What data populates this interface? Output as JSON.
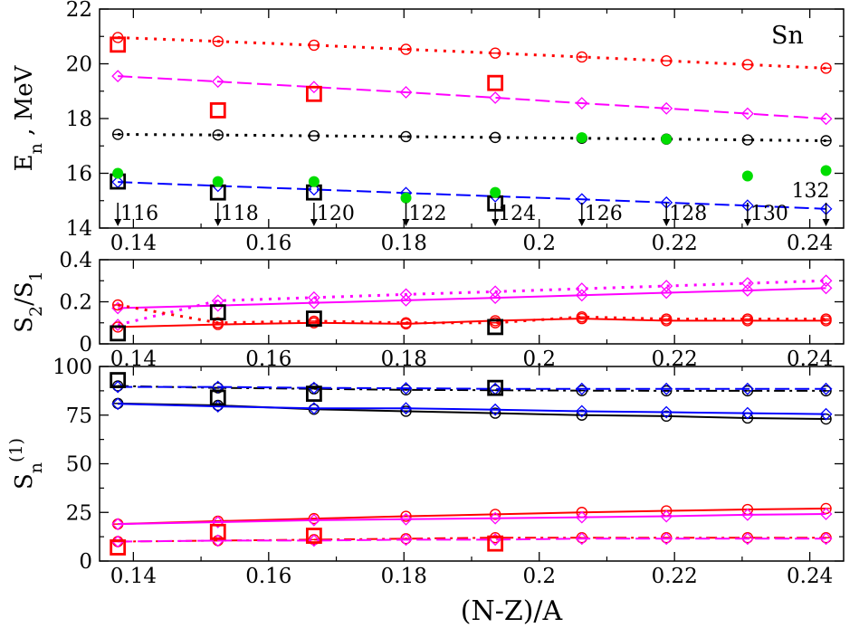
{
  "figure_label": "Sn",
  "shared_x": {
    "label": "(N-Z)/A",
    "ticks": [
      "0.14",
      "0.16",
      "0.18",
      "0.2",
      "0.22",
      "0.24"
    ],
    "tick_values": [
      0.14,
      0.16,
      0.18,
      0.2,
      0.22,
      0.24
    ],
    "range": [
      0.135,
      0.245
    ]
  },
  "colors": {
    "red": "#ff0000",
    "magenta": "#ff00ff",
    "black": "#000000",
    "blue": "#0000ff",
    "green": "#00dd00"
  },
  "chart_data": [
    {
      "type": "line",
      "panel": "top",
      "ylabel": "E_n , MeV",
      "ylim": [
        14,
        22
      ],
      "yticks": [
        "14",
        "16",
        "18",
        "20",
        "22"
      ],
      "ytick_values": [
        14,
        16,
        18,
        20,
        22
      ],
      "x": [
        0.1377,
        0.1525,
        0.1667,
        0.1803,
        0.1935,
        0.2063,
        0.2188,
        0.2308,
        0.2424
      ],
      "series": [
        {
          "name": "red calc",
          "color": "red",
          "marker": "circle",
          "dash": "dots",
          "values": [
            20.96,
            20.82,
            20.68,
            20.53,
            20.39,
            20.25,
            20.11,
            19.97,
            19.84
          ]
        },
        {
          "name": "magenta calc",
          "color": "magenta",
          "marker": "diamond",
          "dash": "long",
          "values": [
            19.55,
            19.35,
            19.15,
            18.96,
            18.76,
            18.56,
            18.37,
            18.18,
            17.99
          ]
        },
        {
          "name": "black calc",
          "color": "black",
          "marker": "circle",
          "dash": "dots",
          "values": [
            17.42,
            17.4,
            17.37,
            17.34,
            17.31,
            17.28,
            17.25,
            17.22,
            17.19
          ]
        },
        {
          "name": "blue calc",
          "color": "blue",
          "marker": "diamond",
          "dash": "long",
          "values": [
            15.68,
            15.54,
            15.41,
            15.28,
            15.16,
            15.05,
            14.93,
            14.82,
            14.7
          ]
        }
      ],
      "experiment": [
        {
          "name": "red squares",
          "color": "red",
          "marker": "square",
          "x": [
            0.1377,
            0.1525,
            0.1667,
            0.1935
          ],
          "values": [
            20.7,
            18.3,
            18.9,
            19.3
          ]
        },
        {
          "name": "black squares",
          "color": "black",
          "marker": "square",
          "x": [
            0.1377,
            0.1525,
            0.1667,
            0.1935
          ],
          "values": [
            15.7,
            15.3,
            15.3,
            14.9
          ]
        },
        {
          "name": "green dots",
          "color": "green",
          "marker": "filled-circle",
          "x": [
            0.1377,
            0.1525,
            0.1667,
            0.1803,
            0.1935,
            0.2063,
            0.2188,
            0.2308,
            0.2424
          ],
          "values": [
            16.0,
            15.7,
            15.7,
            15.1,
            15.3,
            17.3,
            17.25,
            15.9,
            16.1
          ]
        }
      ],
      "annotations": [
        {
          "text": "116",
          "x": 0.1377
        },
        {
          "text": "118",
          "x": 0.1525
        },
        {
          "text": "120",
          "x": 0.1667
        },
        {
          "text": "122",
          "x": 0.1803
        },
        {
          "text": "124",
          "x": 0.1935
        },
        {
          "text": "126",
          "x": 0.2063
        },
        {
          "text": "128",
          "x": 0.2188
        },
        {
          "text": "130",
          "x": 0.2308
        },
        {
          "text": "132",
          "x": 0.2424
        }
      ]
    },
    {
      "type": "line",
      "panel": "middle",
      "ylabel": "S_2/S_1",
      "ylim": [
        0,
        0.4
      ],
      "yticks": [
        "0",
        "0.2",
        "0.4"
      ],
      "ytick_values": [
        0,
        0.2,
        0.4
      ],
      "x": [
        0.1377,
        0.1525,
        0.1667,
        0.1803,
        0.1935,
        0.2063,
        0.2188,
        0.2308,
        0.2424
      ],
      "series": [
        {
          "name": "magenta solid",
          "color": "magenta",
          "marker": "diamond",
          "dash": "solid",
          "values": [
            0.17,
            0.182,
            0.195,
            0.207,
            0.219,
            0.231,
            0.243,
            0.254,
            0.265
          ]
        },
        {
          "name": "magenta dotted",
          "color": "magenta",
          "marker": "diamond",
          "dash": "dots",
          "values": [
            0.09,
            0.205,
            0.22,
            0.235,
            0.248,
            0.262,
            0.275,
            0.288,
            0.3
          ]
        },
        {
          "name": "red solid",
          "color": "red",
          "marker": "circle",
          "dash": "solid",
          "values": [
            0.08,
            0.092,
            0.1,
            0.095,
            0.11,
            0.12,
            0.11,
            0.11,
            0.11
          ]
        },
        {
          "name": "red dotted",
          "color": "red",
          "marker": "circle",
          "dash": "dots",
          "values": [
            0.185,
            0.1,
            0.108,
            0.1,
            0.1,
            0.128,
            0.118,
            0.118,
            0.118
          ]
        }
      ],
      "experiment": [
        {
          "name": "black squares",
          "color": "black",
          "marker": "square",
          "x": [
            0.1377,
            0.1525,
            0.1667,
            0.1935
          ],
          "values": [
            0.05,
            0.15,
            0.12,
            0.08
          ]
        }
      ]
    },
    {
      "type": "line",
      "panel": "bottom",
      "ylabel": "S_n^(1)",
      "ylim": [
        0,
        100
      ],
      "yticks": [
        "0",
        "25",
        "50",
        "75",
        "100"
      ],
      "ytick_values": [
        0,
        25,
        50,
        75,
        100
      ],
      "x": [
        0.1377,
        0.1525,
        0.1667,
        0.1803,
        0.1935,
        0.2063,
        0.2188,
        0.2308,
        0.2424
      ],
      "series": [
        {
          "name": "black dashed",
          "color": "black",
          "marker": "circle",
          "dash": "dashdot",
          "values": [
            90.0,
            89.0,
            88.5,
            88.0,
            87.8,
            87.6,
            87.5,
            87.5,
            87.5
          ]
        },
        {
          "name": "blue dashed",
          "color": "blue",
          "marker": "diamond",
          "dash": "long",
          "values": [
            89.5,
            89.5,
            89.0,
            88.8,
            88.5,
            88.5,
            88.5,
            88.5,
            88.5
          ]
        },
        {
          "name": "black solid",
          "color": "black",
          "marker": "circle",
          "dash": "solid",
          "values": [
            81.0,
            80.0,
            78.0,
            77.0,
            76.0,
            75.0,
            74.5,
            73.5,
            73.0
          ]
        },
        {
          "name": "blue solid",
          "color": "blue",
          "marker": "diamond",
          "dash": "solid",
          "values": [
            80.8,
            79.5,
            78.5,
            78.5,
            77.8,
            77.0,
            76.5,
            76.0,
            75.5
          ]
        },
        {
          "name": "red solid",
          "color": "red",
          "marker": "circle",
          "dash": "solid",
          "values": [
            19.0,
            20.5,
            21.8,
            23.0,
            24.0,
            25.0,
            25.8,
            26.5,
            27.0
          ]
        },
        {
          "name": "magenta solid",
          "color": "magenta",
          "marker": "diamond",
          "dash": "solid",
          "values": [
            19.0,
            20.0,
            21.0,
            21.5,
            22.0,
            22.5,
            23.0,
            23.8,
            24.2
          ]
        },
        {
          "name": "red dashed",
          "color": "red",
          "marker": "circle",
          "dash": "dashdot",
          "values": [
            10.0,
            10.5,
            11.0,
            11.5,
            12.0,
            12.0,
            12.0,
            12.0,
            12.0
          ]
        },
        {
          "name": "magenta dashed",
          "color": "magenta",
          "marker": "diamond",
          "dash": "long",
          "values": [
            10.0,
            10.5,
            10.5,
            11.0,
            11.0,
            11.5,
            11.5,
            11.5,
            11.5
          ]
        }
      ],
      "experiment": [
        {
          "name": "black squares",
          "color": "black",
          "marker": "square",
          "x": [
            0.1377,
            0.1525,
            0.1667,
            0.1935
          ],
          "values": [
            93.0,
            84.0,
            86.0,
            89.0
          ]
        },
        {
          "name": "red squares",
          "color": "red",
          "marker": "square",
          "x": [
            0.1377,
            0.1525,
            0.1667,
            0.1935
          ],
          "values": [
            7.0,
            15.0,
            13.0,
            9.0
          ]
        }
      ]
    }
  ]
}
